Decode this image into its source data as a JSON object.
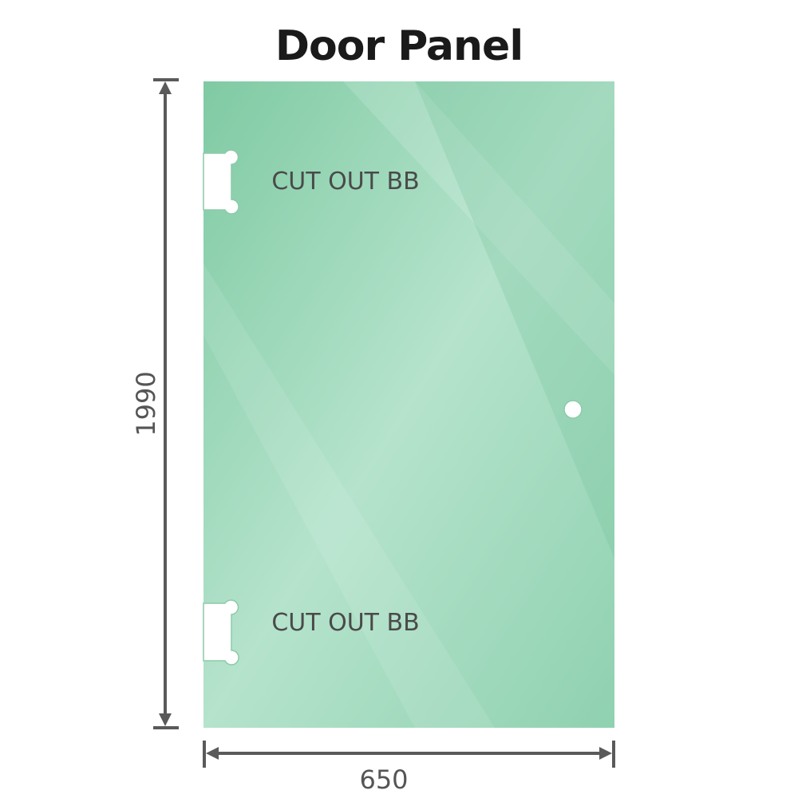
{
  "title": "Door Panel",
  "panel": {
    "glass_color": "#8fd1b0",
    "cutout_labels": [
      "CUT OUT BB",
      "CUT OUT BB"
    ]
  },
  "dimensions": {
    "height": "1990",
    "width": "650",
    "line_color": "#5a5a5a"
  }
}
